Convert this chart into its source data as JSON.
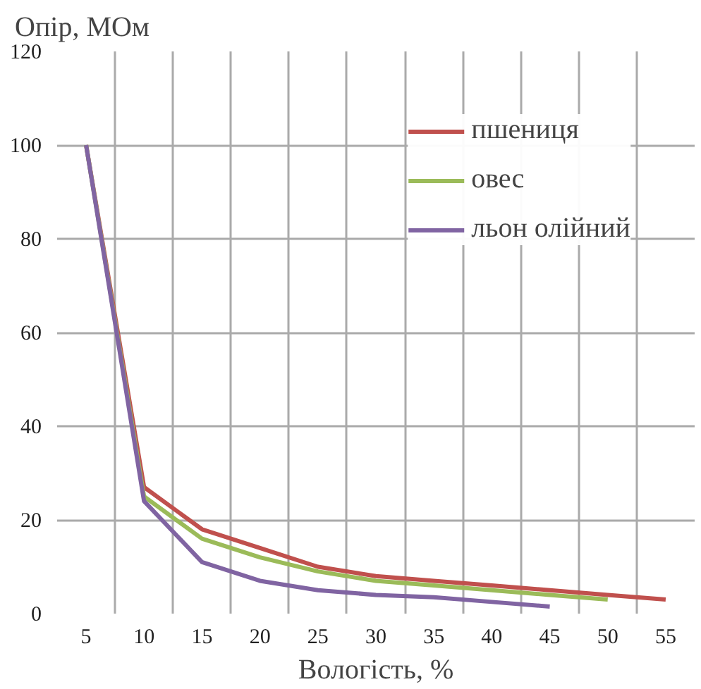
{
  "chart_data": {
    "type": "line",
    "ylabel": "Опір, МОм",
    "xlabel": "Вологість, %",
    "categories": [
      "5",
      "10",
      "15",
      "20",
      "25",
      "30",
      "35",
      "40",
      "45",
      "50",
      "55"
    ],
    "ylim": [
      0,
      120
    ],
    "yticks": [
      0,
      20,
      40,
      60,
      80,
      100,
      120
    ],
    "grid": true,
    "legend": "top right",
    "line_style": "solid",
    "series": [
      {
        "name": "пшениця",
        "color": "#c0504d",
        "values": [
          100,
          27,
          18,
          14,
          10,
          8,
          7,
          6,
          5,
          4,
          3
        ]
      },
      {
        "name": "овес",
        "color": "#9bbb59",
        "values": [
          100,
          25,
          16,
          12,
          9,
          7,
          6,
          5,
          4,
          3,
          null
        ]
      },
      {
        "name": "льон олійний",
        "color": "#8064a2",
        "values": [
          100,
          24,
          11,
          7,
          5,
          4,
          3.5,
          2.5,
          1.5,
          null,
          null
        ]
      }
    ]
  }
}
